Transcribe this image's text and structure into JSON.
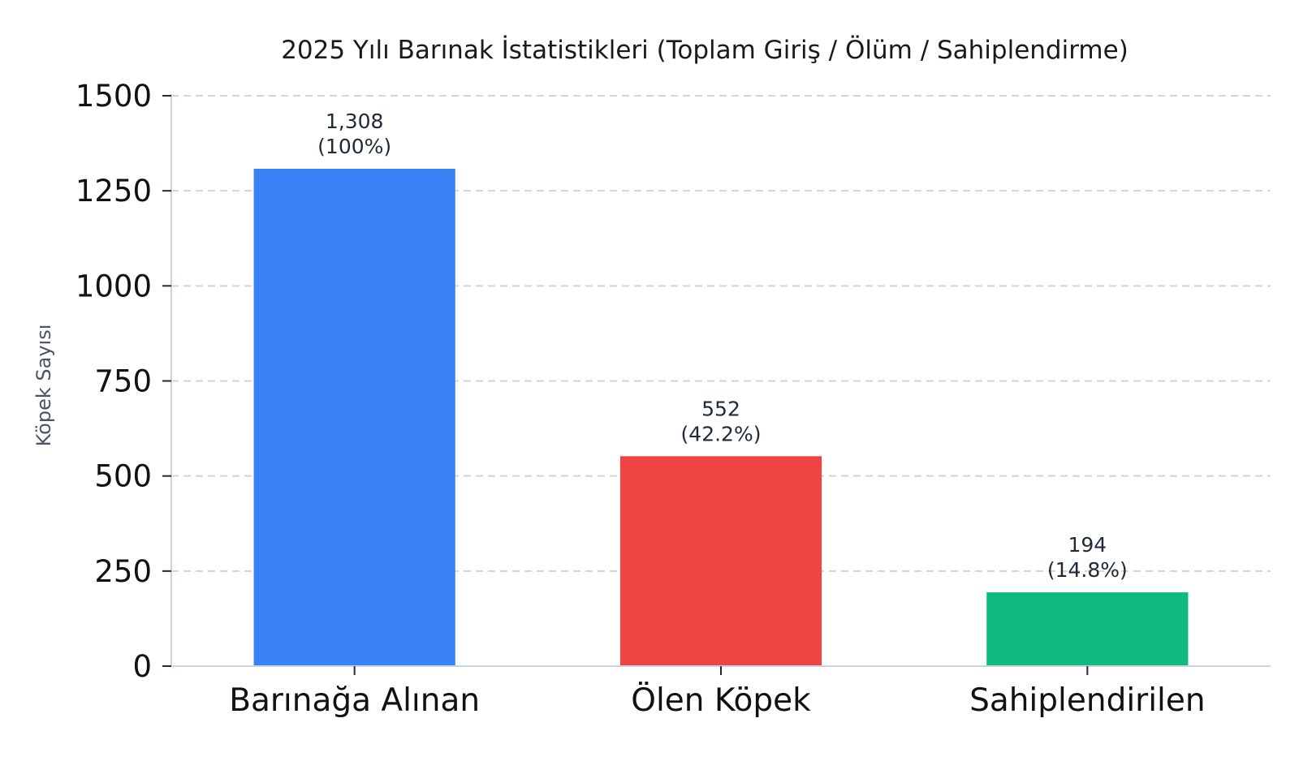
{
  "chart_data": {
    "type": "bar",
    "title": "2025 Yılı Barınak İstatistikleri (Toplam Giriş / Ölüm / Sahiplendirme)",
    "xlabel": "",
    "ylabel": "Köpek Sayısı",
    "ylim": [
      0,
      1500
    ],
    "yticks": [
      0,
      250,
      500,
      750,
      1000,
      1250,
      1500
    ],
    "ytick_labels": [
      "0",
      "250",
      "500",
      "750",
      "1000",
      "1250",
      "1500"
    ],
    "grid": "horizontal-dashed",
    "categories": [
      "Barınağa Alınan",
      "Ölen Köpek",
      "Sahiplendirilen"
    ],
    "values": [
      1308,
      552,
      194
    ],
    "value_labels": [
      "1,308",
      "552",
      "194"
    ],
    "percent_labels": [
      "(100%)",
      "(42.2%)",
      "(14.8%)"
    ],
    "colors": [
      "#3b82f6",
      "#ef4444",
      "#10b981"
    ]
  }
}
